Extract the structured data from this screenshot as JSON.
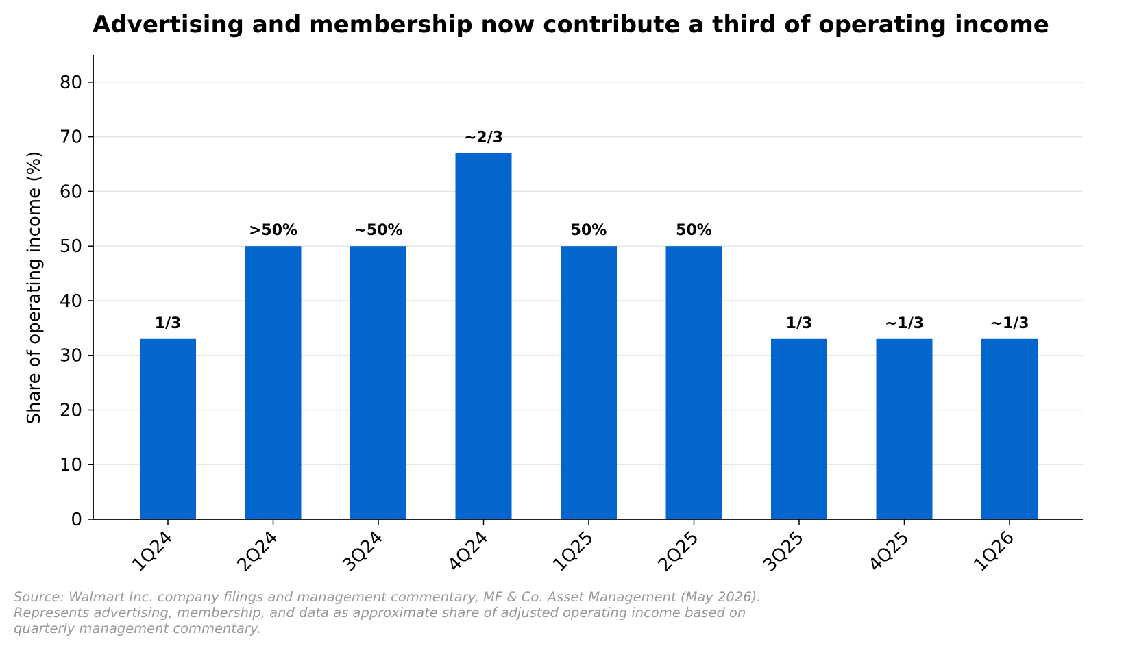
{
  "chart_data": {
    "type": "bar",
    "title": "Advertising and membership now contribute a third of operating income",
    "xlabel": "",
    "ylabel": "Share of operating income (%)",
    "categories": [
      "1Q24",
      "2Q24",
      "3Q24",
      "4Q24",
      "1Q25",
      "2Q25",
      "3Q25",
      "4Q25",
      "1Q26"
    ],
    "values": [
      33,
      50,
      50,
      67,
      50,
      50,
      33,
      33,
      33
    ],
    "data_labels": [
      "1/3",
      ">50%",
      "~50%",
      "~2/3",
      "50%",
      "50%",
      "1/3",
      "~1/3",
      "~1/3"
    ],
    "ylim": [
      0,
      85
    ],
    "yticks": [
      0,
      10,
      20,
      30,
      40,
      50,
      60,
      70,
      80
    ],
    "bar_color": "#0366CE",
    "grid": "horizontal",
    "legend": "none"
  },
  "footnote": {
    "lines": [
      "Source: Walmart Inc. company filings and management commentary, MF & Co. Asset Management (May 2026).",
      "Represents advertising, membership, and data as approximate share of adjusted operating income based on",
      "quarterly management commentary."
    ]
  }
}
